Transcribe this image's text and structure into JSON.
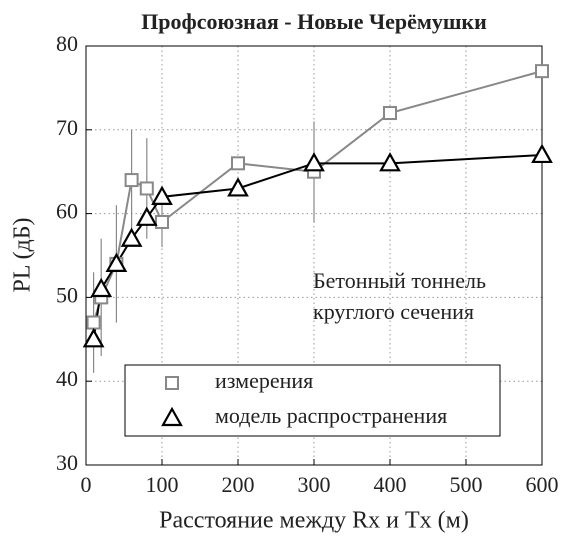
{
  "chart_data": {
    "type": "line",
    "title": "Профсоюзная - Новые Черёмушки",
    "xlabel": "Расстояние между Rx и Tx (м)",
    "ylabel": "PL (дБ)",
    "annotation": [
      "Бетонный тоннель",
      "круглого сечения"
    ],
    "xlim": [
      0,
      600
    ],
    "xticks": [
      0,
      100,
      200,
      300,
      400,
      500,
      600
    ],
    "ylim": [
      30,
      80
    ],
    "yticks": [
      30,
      40,
      50,
      60,
      70,
      80
    ],
    "grid": true,
    "legend": "lower center",
    "series": [
      {
        "name": "измерения",
        "color": "#888888",
        "marker": "square",
        "x": [
          10,
          20,
          40,
          60,
          80,
          100,
          200,
          300,
          400,
          600
        ],
        "values": [
          47,
          50,
          54,
          64,
          63,
          59,
          66,
          65,
          72,
          77
        ],
        "errors": [
          6,
          7,
          7,
          6,
          6,
          3,
          null,
          6,
          null,
          null
        ]
      },
      {
        "name": "модель распространения",
        "color": "#000000",
        "marker": "triangle",
        "x": [
          10,
          20,
          40,
          60,
          80,
          100,
          200,
          300,
          400,
          600
        ],
        "values": [
          45,
          51,
          54,
          57,
          59.5,
          62,
          63,
          66,
          66,
          67
        ]
      }
    ]
  }
}
